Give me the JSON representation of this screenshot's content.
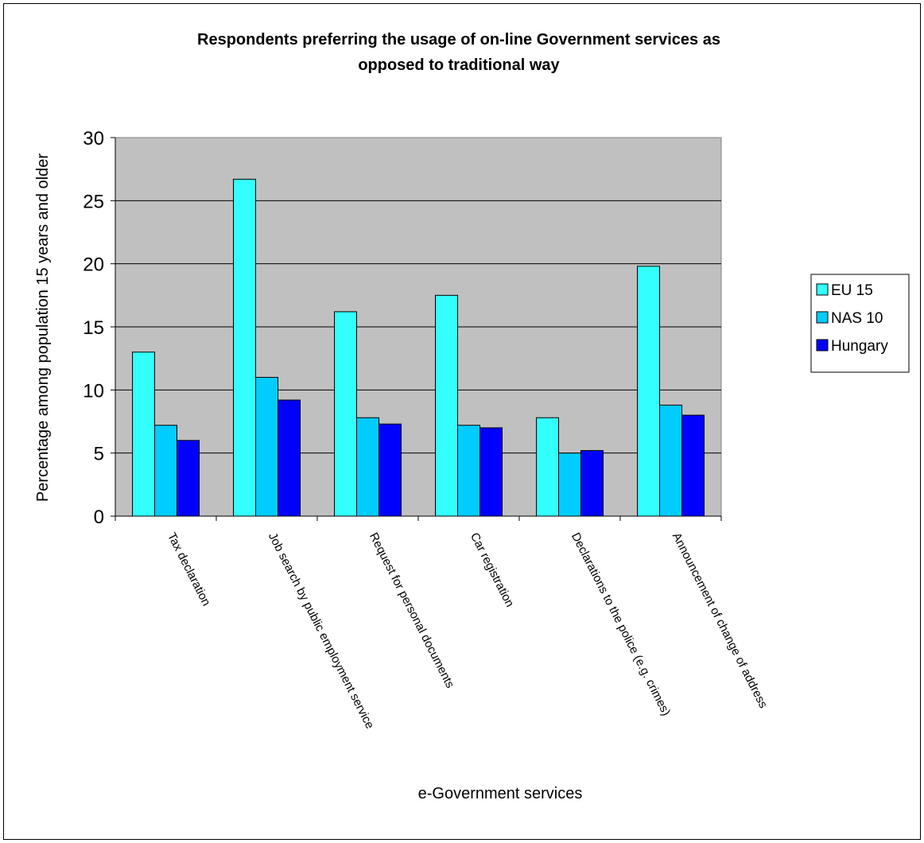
{
  "chart_data": {
    "type": "bar",
    "title_lines": [
      "Respondents preferring the usage of on-line Government services as",
      "opposed to traditional way"
    ],
    "xlabel": "e-Government services",
    "ylabel": "Percentage among population 15 years and older",
    "ylim": [
      0,
      30
    ],
    "yticks": [
      0,
      5,
      10,
      15,
      20,
      25,
      30
    ],
    "ytick_labels": [
      "0",
      "5",
      "10",
      "15",
      "20",
      "25",
      "30"
    ],
    "grid": true,
    "plot_background": "#C0C0C0",
    "legend_position": "right",
    "categories": [
      "Tax declaration",
      "Job search by public employment service",
      "Request for personal documents",
      "Car registration",
      "Declarations to the police (e.g. crimes)",
      "Announcement of change of address"
    ],
    "series": [
      {
        "name": "EU 15",
        "color": "#33FFFF",
        "values": [
          13.0,
          26.7,
          16.2,
          17.5,
          7.8,
          19.8
        ]
      },
      {
        "name": "NAS 10",
        "color": "#00CCFF",
        "values": [
          7.2,
          11.0,
          7.8,
          7.2,
          5.0,
          8.8
        ]
      },
      {
        "name": "Hungary",
        "color": "#0000FF",
        "values": [
          6.0,
          9.2,
          7.3,
          7.0,
          5.2,
          8.0
        ]
      }
    ]
  }
}
